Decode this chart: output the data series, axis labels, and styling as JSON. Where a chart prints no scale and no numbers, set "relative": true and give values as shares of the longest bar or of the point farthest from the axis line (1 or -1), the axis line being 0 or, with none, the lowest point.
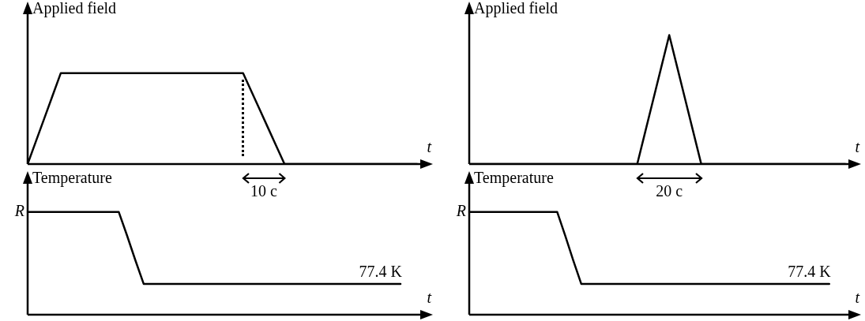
{
  "chart_data": [
    {
      "type": "line",
      "relative": true,
      "ylabel": "Applied field",
      "xlabel": "t",
      "annotations": [
        "10 c"
      ],
      "categories": [
        null,
        null,
        null,
        null,
        null,
        null,
        null,
        null,
        null,
        null,
        null,
        null,
        null,
        null,
        null,
        null,
        null,
        null,
        null,
        null,
        null,
        null,
        null,
        null,
        null,
        null,
        null,
        null,
        null,
        null,
        null,
        null,
        null,
        null,
        null,
        null,
        null,
        null,
        null,
        null,
        null,
        null,
        null,
        null,
        null,
        null,
        null,
        null
      ],
      "color": "#000000",
      "values": [
        0,
        0.25,
        0.5,
        0.75,
        1,
        1,
        1,
        1,
        1,
        1,
        1,
        1,
        1,
        1,
        1,
        1,
        1,
        1,
        1,
        1,
        1,
        1,
        1,
        1,
        1,
        1,
        1,
        0.8,
        0.6,
        0.4,
        0.2,
        0,
        0,
        0,
        0,
        0,
        0,
        0,
        0,
        0,
        0,
        0,
        0,
        0,
        0,
        0,
        0,
        0
      ]
    },
    {
      "type": "line",
      "relative": true,
      "ylabel": "Temperature",
      "xlabel": "t",
      "annotations": [
        "R",
        "77.4 K"
      ],
      "categories": [
        null,
        null,
        null,
        null,
        null,
        null,
        null,
        null,
        null,
        null,
        null,
        null,
        null,
        null,
        null,
        null,
        null,
        null,
        null,
        null,
        null,
        null,
        null,
        null,
        null,
        null,
        null,
        null,
        null,
        null,
        null,
        null,
        null,
        null,
        null,
        null,
        null,
        null,
        null,
        null,
        null,
        null,
        null,
        null,
        null,
        null,
        null,
        null
      ],
      "color": "#000000",
      "values": [
        1,
        1,
        1,
        1,
        1,
        1,
        1,
        1,
        1,
        1,
        1,
        1,
        0.77,
        0.53,
        0.3,
        0.3,
        0.3,
        0.3,
        0.3,
        0.3,
        0.3,
        0.3,
        0.3,
        0.3,
        0.3,
        0.3,
        0.3,
        0.3,
        0.3,
        0.3,
        0.3,
        0.3,
        0.3,
        0.3,
        0.3,
        0.3,
        0.3,
        0.3,
        0.3,
        0.3,
        0.3,
        0.3,
        0.3,
        0.3,
        0.3,
        0.3,
        null,
        null
      ]
    },
    {
      "type": "line",
      "relative": true,
      "ylabel": "Applied field",
      "xlabel": "t",
      "annotations": [
        "20 c"
      ],
      "categories": [
        null,
        null,
        null,
        null,
        null,
        null,
        null,
        null,
        null,
        null,
        null,
        null,
        null,
        null,
        null,
        null,
        null,
        null,
        null,
        null,
        null,
        null,
        null,
        null,
        null,
        null,
        null,
        null,
        null,
        null,
        null,
        null,
        null,
        null,
        null,
        null,
        null,
        null,
        null,
        null,
        null,
        null,
        null,
        null,
        null,
        null,
        null,
        null
      ],
      "color": "#000000",
      "values": [
        0,
        0,
        0,
        0,
        0,
        0,
        0,
        0,
        0,
        0,
        0,
        0,
        0,
        0,
        0,
        0,
        0,
        0,
        0,
        0,
        0,
        0,
        0.25,
        0.5,
        0.75,
        1,
        0.75,
        0.5,
        0.25,
        0,
        0,
        0,
        0,
        0,
        0,
        0,
        0,
        0,
        0,
        0,
        0,
        0,
        0,
        0,
        0,
        0,
        0,
        0
      ]
    },
    {
      "type": "line",
      "relative": true,
      "ylabel": "Temperature",
      "xlabel": "t",
      "annotations": [
        "R",
        "77.4 K"
      ],
      "categories": [
        null,
        null,
        null,
        null,
        null,
        null,
        null,
        null,
        null,
        null,
        null,
        null,
        null,
        null,
        null,
        null,
        null,
        null,
        null,
        null,
        null,
        null,
        null,
        null,
        null,
        null,
        null,
        null,
        null,
        null,
        null,
        null,
        null,
        null,
        null,
        null,
        null,
        null,
        null,
        null,
        null,
        null,
        null,
        null,
        null,
        null,
        null,
        null
      ],
      "color": "#000000",
      "values": [
        1,
        1,
        1,
        1,
        1,
        1,
        1,
        1,
        1,
        1,
        1,
        1,
        0.77,
        0.53,
        0.3,
        0.3,
        0.3,
        0.3,
        0.3,
        0.3,
        0.3,
        0.3,
        0.3,
        0.3,
        0.3,
        0.3,
        0.3,
        0.3,
        0.3,
        0.3,
        0.3,
        0.3,
        0.3,
        0.3,
        0.3,
        0.3,
        0.3,
        0.3,
        0.3,
        0.3,
        0.3,
        0.3,
        0.3,
        0.3,
        0.3,
        0.3,
        null,
        null
      ]
    }
  ]
}
